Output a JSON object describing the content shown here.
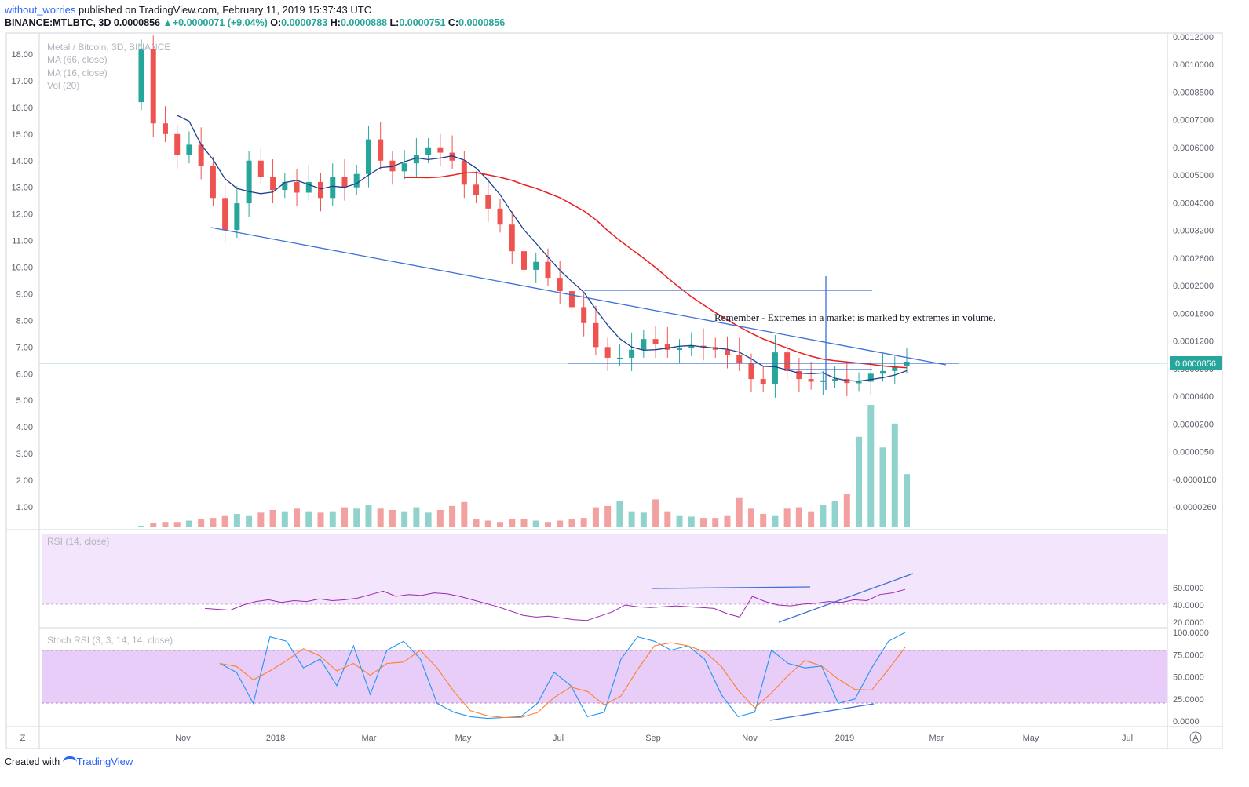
{
  "header": {
    "author": "without_worries",
    "published": "published on TradingView.com, February 11, 2019 15:37:43 UTC",
    "symbol": "BINANCE:MTLBTC, 3D",
    "last": "0.0000856",
    "arrow": "▲",
    "change": "+0.0000071 (+9.04%)",
    "o_label": "O:",
    "o": "0.0000783",
    "h_label": "H:",
    "h": "0.0000888",
    "l_label": "L:",
    "l": "0.0000751",
    "c_label": "C:",
    "c": "0.0000856"
  },
  "footer": {
    "created": "Created with",
    "brand": "TradingView"
  },
  "legend": {
    "main": "Metal / Bitcoin, 3D, BINANCE",
    "ma66": "MA (66, close)",
    "ma16": "MA (16, close)",
    "vol": "Vol (20)",
    "rsi": "RSI (14, close)",
    "stoch": "Stoch RSI (3, 3, 14, 14, close)"
  },
  "annotation": "Remember - Extremes in a market is marked by extremes in volume.",
  "price_badge": "0.0000856",
  "buttons": {
    "left": "Z",
    "right": "A"
  },
  "colors": {
    "up": "#26a69a",
    "down": "#ef5350",
    "ma66": "#e91e1e",
    "ma16": "#1e3f8f",
    "trend": "#3d6fd8",
    "rsi": "#9c27b0",
    "stoch_k": "#2196f3",
    "stoch_d": "#ff7f2a",
    "rsi_band": "#f3e5fb",
    "stoch_band": "#e7cdf7"
  },
  "chart_data": {
    "type": "candlestick",
    "x_tick_labels": [
      "Nov",
      "2018",
      "Mar",
      "May",
      "Jul",
      "Sep",
      "Nov",
      "2019",
      "Mar",
      "May",
      "Jul"
    ],
    "left_axis_ticks": [
      "18.00",
      "17.00",
      "16.00",
      "15.00",
      "14.00",
      "13.00",
      "12.00",
      "11.00",
      "10.00",
      "9.00",
      "8.00",
      "7.00",
      "6.00",
      "5.00",
      "4.00",
      "3.00",
      "2.00",
      "1.00"
    ],
    "right_axis_ticks": [
      "0.0012000",
      "0.0010000",
      "0.0008500",
      "0.0007000",
      "0.0006000",
      "0.0005000",
      "0.0004000",
      "0.0003200",
      "0.0002600",
      "0.0002000",
      "0.0001600",
      "0.0001200",
      "0.0000600",
      "0.0000400",
      "0.0000200",
      "0.0000050",
      "-0.0000100",
      "-0.0000260"
    ],
    "rsi_ticks": [
      "60.0000",
      "40.0000",
      "20.0000"
    ],
    "stoch_ticks": [
      "100.0000",
      "75.0000",
      "50.0000",
      "25.0000",
      "0.0000"
    ],
    "price_scale": "left axis, linear",
    "close_series": [
      18.2,
      15.4,
      15.0,
      14.2,
      14.6,
      13.8,
      12.6,
      11.4,
      12.4,
      14.0,
      13.4,
      12.9,
      13.2,
      12.8,
      13.2,
      12.6,
      13.4,
      13.0,
      13.5,
      14.8,
      14.0,
      13.6,
      13.9,
      14.2,
      14.5,
      14.3,
      14.0,
      13.1,
      12.7,
      12.2,
      11.6,
      10.6,
      9.9,
      10.2,
      9.6,
      9.1,
      8.5,
      7.9,
      7.0,
      6.6,
      6.6,
      6.9,
      7.3,
      7.1,
      6.9,
      6.95,
      7.05,
      7.0,
      6.9,
      6.7,
      6.4,
      5.8,
      5.6,
      6.8,
      6.1,
      5.8,
      5.7,
      5.75,
      5.8,
      5.65,
      5.7,
      6.0,
      6.1,
      6.3,
      6.45
    ],
    "volume_series": [
      0.05,
      0.15,
      0.2,
      0.2,
      0.25,
      0.3,
      0.35,
      0.45,
      0.5,
      0.45,
      0.55,
      0.65,
      0.6,
      0.7,
      0.6,
      0.55,
      0.6,
      0.75,
      0.7,
      0.85,
      0.7,
      0.65,
      0.6,
      0.75,
      0.55,
      0.65,
      0.8,
      0.95,
      0.3,
      0.25,
      0.2,
      0.3,
      0.3,
      0.25,
      0.2,
      0.25,
      0.3,
      0.35,
      0.75,
      0.8,
      1.0,
      0.6,
      0.55,
      1.05,
      0.6,
      0.45,
      0.4,
      0.35,
      0.35,
      0.45,
      1.1,
      0.7,
      0.5,
      0.45,
      0.7,
      0.75,
      0.6,
      0.85,
      1.0,
      1.25,
      3.4,
      4.6,
      3.0,
      3.9,
      2.0
    ],
    "rsi_series": [
      36,
      35,
      34,
      40,
      44,
      46,
      43,
      45,
      44,
      47,
      45,
      46,
      48,
      52,
      56,
      50,
      52,
      51,
      54,
      53,
      50,
      46,
      42,
      38,
      33,
      28,
      26,
      27,
      25,
      23,
      22,
      27,
      32,
      40,
      38,
      37,
      38,
      39,
      38,
      37,
      36,
      30,
      26,
      50,
      44,
      40,
      39,
      41,
      42,
      44,
      43,
      46,
      45,
      52,
      54,
      58
    ],
    "stoch_k_series": [
      65,
      55,
      20,
      95,
      90,
      60,
      70,
      40,
      85,
      30,
      80,
      90,
      70,
      20,
      10,
      5,
      3,
      4,
      5,
      20,
      55,
      40,
      5,
      10,
      70,
      95,
      90,
      80,
      85,
      70,
      30,
      5,
      10,
      80,
      65,
      60,
      62,
      20,
      25,
      60,
      90,
      100
    ],
    "annotations": [
      "descending trendline from Nov 2017 to Feb 2019",
      "horizontal support near 6.2",
      "horizontal level near 9.1",
      "rising trendline on RSI",
      "rising trendline on Stoch RSI"
    ]
  }
}
